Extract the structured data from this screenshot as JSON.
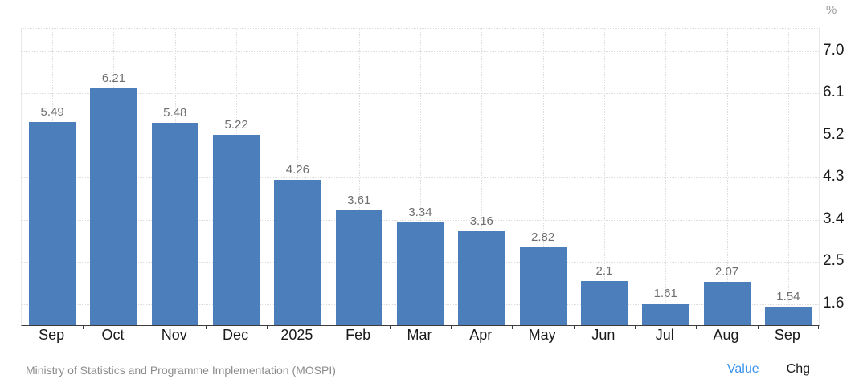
{
  "chart": {
    "unit_label": "%",
    "source_label": "Ministry of Statistics and Programme Implementation (MOSPI)",
    "toggles": [
      {
        "label": "Value",
        "active": true
      },
      {
        "label": "Chg",
        "active": false
      }
    ],
    "colors": {
      "bar": "#4d7ebc",
      "accent": "#3b94f0",
      "grid": "#dddddd",
      "plot_border": "#e8e8e8",
      "axis_line": "#3c3c3c",
      "bar_value_label": "#6f6f6f",
      "axis_text": "#1a1a1a",
      "source_text": "#8c8c8c"
    }
  },
  "chart_data": {
    "type": "bar",
    "title": "",
    "xlabel": "",
    "ylabel": "%",
    "categories": [
      "Sep",
      "Oct",
      "Nov",
      "Dec",
      "2025",
      "Feb",
      "Mar",
      "Apr",
      "May",
      "Jun",
      "Jul",
      "Aug",
      "Sep"
    ],
    "values": [
      5.49,
      6.21,
      5.48,
      5.22,
      4.26,
      3.61,
      3.34,
      3.16,
      2.82,
      2.1,
      1.61,
      2.07,
      1.54
    ],
    "bar_value_labels": [
      "5.49",
      "6.21",
      "5.48",
      "5.22",
      "4.26",
      "3.61",
      "3.34",
      "3.16",
      "2.82",
      "2.1",
      "1.61",
      "2.07",
      "1.54"
    ],
    "yticks": [
      7.0,
      6.1,
      5.2,
      4.3,
      3.4,
      2.5,
      1.6
    ],
    "ytick_labels": [
      "7.0",
      "6.1",
      "5.2",
      "4.3",
      "3.4",
      "2.5",
      "1.6"
    ],
    "ylim": [
      1.15,
      7.48
    ],
    "grid": "dotted",
    "legend_position": "none"
  }
}
